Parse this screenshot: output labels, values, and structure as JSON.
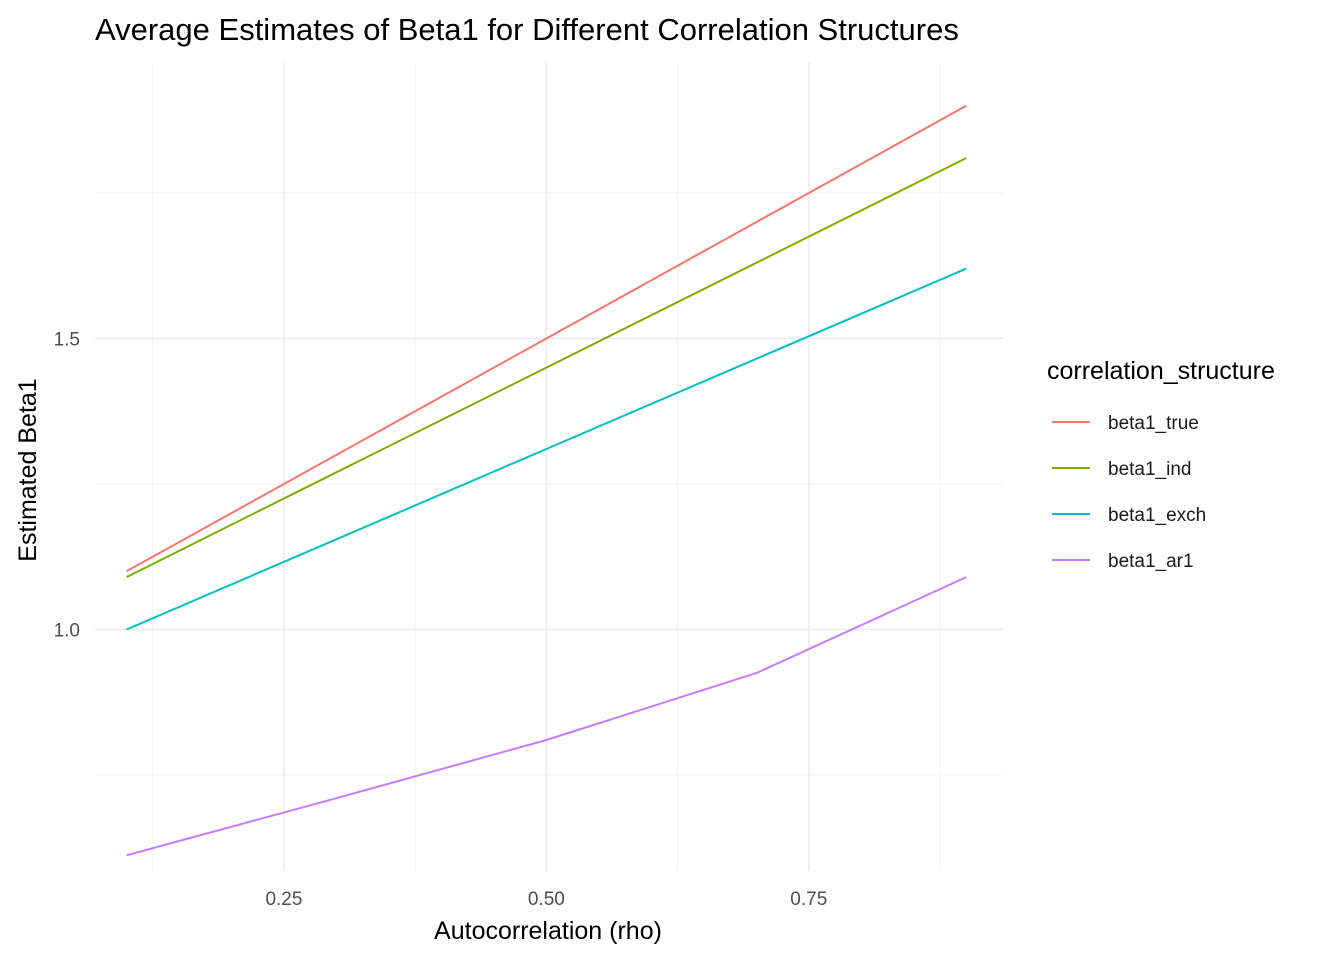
{
  "chart_data": {
    "type": "line",
    "title": "Average Estimates of Beta1 for Different Correlation Structures",
    "xlabel": "Autocorrelation (rho)",
    "ylabel": "Estimated Beta1",
    "xlim": [
      0.07,
      0.935
    ],
    "ylim": [
      0.585,
      1.975
    ],
    "x_ticks": [
      0.25,
      0.5,
      0.75
    ],
    "x_tick_labels": [
      "0.25",
      "0.50",
      "0.75"
    ],
    "y_ticks": [
      1.0,
      1.5
    ],
    "y_tick_labels": [
      "1.0",
      "1.5"
    ],
    "grid": true,
    "legend_title": "correlation_structure",
    "legend_position": "right",
    "x": [
      0.1,
      0.3,
      0.5,
      0.7,
      0.9
    ],
    "series": [
      {
        "name": "beta1_true",
        "color": "#F8766D",
        "values": [
          1.1,
          1.3,
          1.5,
          1.7,
          1.9
        ]
      },
      {
        "name": "beta1_ind",
        "color": "#7CAE00",
        "values": [
          1.09,
          1.27,
          1.45,
          1.63,
          1.81
        ]
      },
      {
        "name": "beta1_exch",
        "color": "#00BFC4",
        "values": [
          1.0,
          1.155,
          1.31,
          1.465,
          1.62
        ]
      },
      {
        "name": "beta1_ar1",
        "color": "#C77CFF",
        "values": [
          0.612,
          0.71,
          0.81,
          0.925,
          1.09
        ]
      }
    ]
  }
}
